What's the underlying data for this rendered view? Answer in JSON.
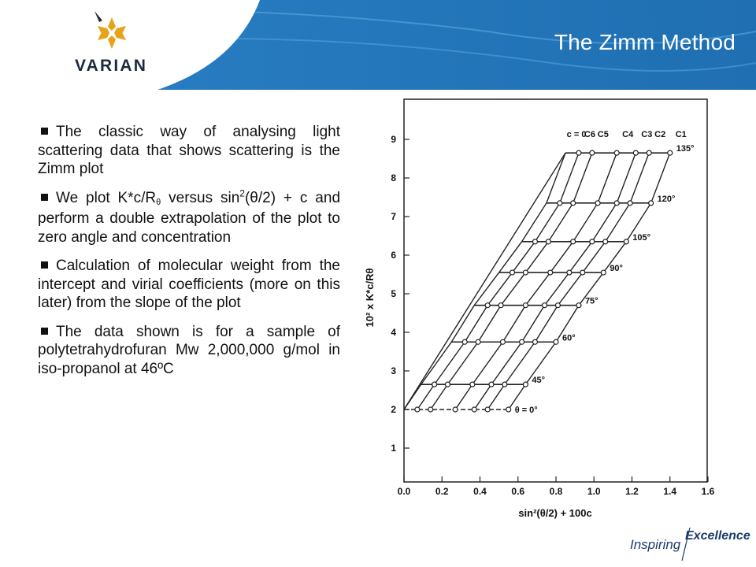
{
  "header": {
    "title": "The Zimm Method",
    "logo_text": "VARIAN"
  },
  "bullets": {
    "b1": "The classic way of analysing light scattering data that shows scattering is the Zimm plot",
    "b2_a": "We plot K*c/R",
    "b2_sub": "θ",
    "b2_b": " versus sin",
    "b2_sup": "2",
    "b2_c": "(θ/2) + c and perform a double extrapolation of the plot to zero angle and concentration",
    "b3": "Calculation of molecular weight from the intercept and virial coefficients (more on this later) from the slope of the plot",
    "b4": "The data shown is for a sample of polytetrahydrofuran Mw 2,000,000 g/mol in iso-propanol at 46ºC"
  },
  "footer": {
    "inspiring": "Inspiring",
    "excellence": "Excellence"
  },
  "colors": {
    "header_blue": "#1f6fb2",
    "header_blue_light": "#4a9ad6",
    "logo_gold": "#e8a21a",
    "line": "#222222"
  },
  "chart_data": {
    "type": "line",
    "title": "",
    "xlabel": "sin²(θ/2) + 100c",
    "ylabel": "10² x K*c/Rθ",
    "xlim": [
      0.0,
      1.6
    ],
    "ylim": [
      0,
      10
    ],
    "x_ticks": [
      "0.0",
      "0.2",
      "0.4",
      "0.6",
      "0.8",
      "1.0",
      "1.2",
      "1.4",
      "1.6"
    ],
    "y_ticks": [
      "1",
      "2",
      "3",
      "4",
      "5",
      "6",
      "7",
      "8",
      "9"
    ],
    "angle_labels": [
      "θ = 0°",
      "45°",
      "60°",
      "75°",
      "90°",
      "105°",
      "120°",
      "135°"
    ],
    "concentration_labels": [
      "c = 0",
      "C6",
      "C5",
      "C4",
      "C3",
      "C2",
      "C1"
    ],
    "concentration_offsets": [
      0.0,
      0.07,
      0.14,
      0.27,
      0.37,
      0.44,
      0.55
    ],
    "angle_series": [
      {
        "name": "θ = 0°",
        "x0": 0.0,
        "y": 2.0,
        "points_x": [
          0.07,
          0.14,
          0.27,
          0.37,
          0.44,
          0.55
        ]
      },
      {
        "name": "45°",
        "x0": 0.09,
        "y": 2.65,
        "points_x": [
          0.09,
          0.16,
          0.23,
          0.36,
          0.46,
          0.53,
          0.64
        ]
      },
      {
        "name": "60°",
        "x0": 0.25,
        "y": 3.75,
        "points_x": [
          0.25,
          0.32,
          0.39,
          0.52,
          0.62,
          0.69,
          0.8
        ]
      },
      {
        "name": "75°",
        "x0": 0.37,
        "y": 4.7,
        "points_x": [
          0.37,
          0.44,
          0.51,
          0.64,
          0.74,
          0.81,
          0.92
        ]
      },
      {
        "name": "90°",
        "x0": 0.5,
        "y": 5.55,
        "points_x": [
          0.5,
          0.57,
          0.64,
          0.77,
          0.87,
          0.94,
          1.05
        ]
      },
      {
        "name": "105°",
        "x0": 0.62,
        "y": 6.35,
        "points_x": [
          0.62,
          0.69,
          0.76,
          0.89,
          0.99,
          1.06,
          1.17
        ]
      },
      {
        "name": "120°",
        "x0": 0.75,
        "y": 7.35,
        "points_x": [
          0.75,
          0.82,
          0.89,
          1.02,
          1.12,
          1.19,
          1.3
        ]
      },
      {
        "name": "135°",
        "x0": 0.85,
        "y": 8.65,
        "points_x": [
          0.85,
          0.92,
          0.99,
          1.12,
          1.22,
          1.29,
          1.4
        ]
      }
    ]
  }
}
